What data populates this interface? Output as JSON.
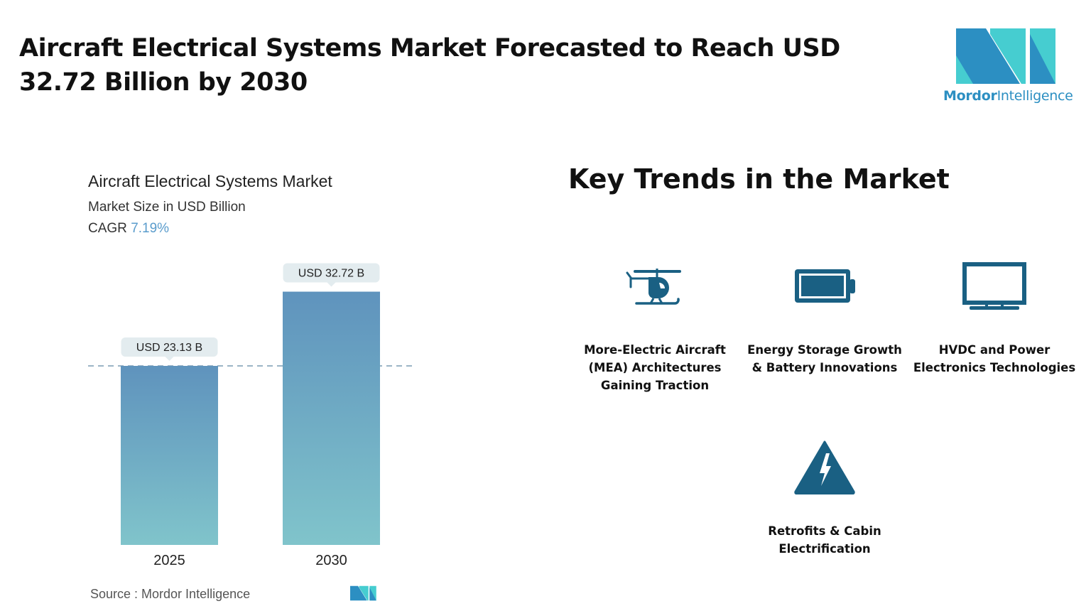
{
  "header": {
    "title": "Aircraft Electrical Systems Market Forecasted to Reach USD 32.72 Billion by 2030"
  },
  "logo": {
    "brand_bold": "Mordor",
    "brand_light": "Intelligence"
  },
  "chart_data": {
    "type": "bar",
    "title": "Aircraft Electrical Systems Market",
    "subtitle": "Market Size in USD Billion",
    "cagr_label": "CAGR",
    "cagr_value": "7.19%",
    "categories": [
      "2025",
      "2030"
    ],
    "values": [
      23.13,
      32.72
    ],
    "data_labels": [
      "USD 23.13 B",
      "USD 32.72 B"
    ],
    "ylim": [
      0,
      35
    ],
    "grid": false,
    "reference_line": 23.13,
    "colors": {
      "bar_top": "#5f93bd",
      "bar_bottom": "#80c4cb",
      "label_bg": "#e3ecef"
    }
  },
  "source": "Source :  Mordor Intelligence",
  "trends": {
    "title": "Key Trends in the Market",
    "icon_color": "#1a6083",
    "items": [
      {
        "icon": "helicopter-icon",
        "label": "More-Electric Aircraft (MEA) Architectures Gaining Traction"
      },
      {
        "icon": "battery-icon",
        "label": "Energy Storage Growth & Battery Innovations"
      },
      {
        "icon": "monitor-icon",
        "label": "HVDC and Power Electronics Technologies"
      },
      {
        "icon": "high-voltage-warning-icon",
        "label": "Retrofits & Cabin Electrification"
      }
    ]
  }
}
